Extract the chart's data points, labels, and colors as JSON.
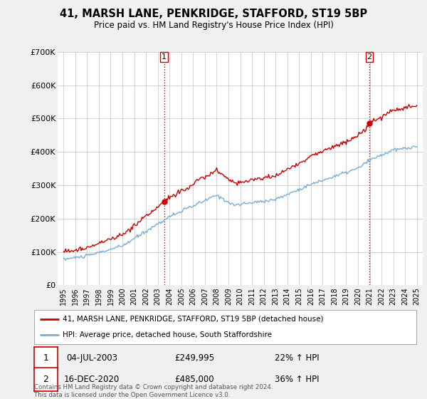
{
  "title": "41, MARSH LANE, PENKRIDGE, STAFFORD, ST19 5BP",
  "subtitle": "Price paid vs. HM Land Registry's House Price Index (HPI)",
  "ylim": [
    0,
    700000
  ],
  "yticks": [
    0,
    100000,
    200000,
    300000,
    400000,
    500000,
    600000,
    700000
  ],
  "ytick_labels": [
    "£0",
    "£100K",
    "£200K",
    "£300K",
    "£400K",
    "£500K",
    "£600K",
    "£700K"
  ],
  "sale1_price": 249995,
  "sale1_label": "1",
  "sale1_date_str": "04-JUL-2003",
  "sale1_pct": "22% ↑ HPI",
  "sale1_year": 2003.542,
  "sale2_price": 485000,
  "sale2_label": "2",
  "sale2_date_str": "16-DEC-2020",
  "sale2_pct": "36% ↑ HPI",
  "sale2_year": 2020.958,
  "legend_line1": "41, MARSH LANE, PENKRIDGE, STAFFORD, ST19 5BP (detached house)",
  "legend_line2": "HPI: Average price, detached house, South Staffordshire",
  "footer": "Contains HM Land Registry data © Crown copyright and database right 2024.\nThis data is licensed under the Open Government Licence v3.0.",
  "line_color_red": "#cc0000",
  "line_color_blue": "#7aafd4",
  "vline_color": "#cc0000",
  "background_color": "#f0f0f0",
  "plot_bg_color": "#ffffff",
  "grid_color": "#cccccc"
}
